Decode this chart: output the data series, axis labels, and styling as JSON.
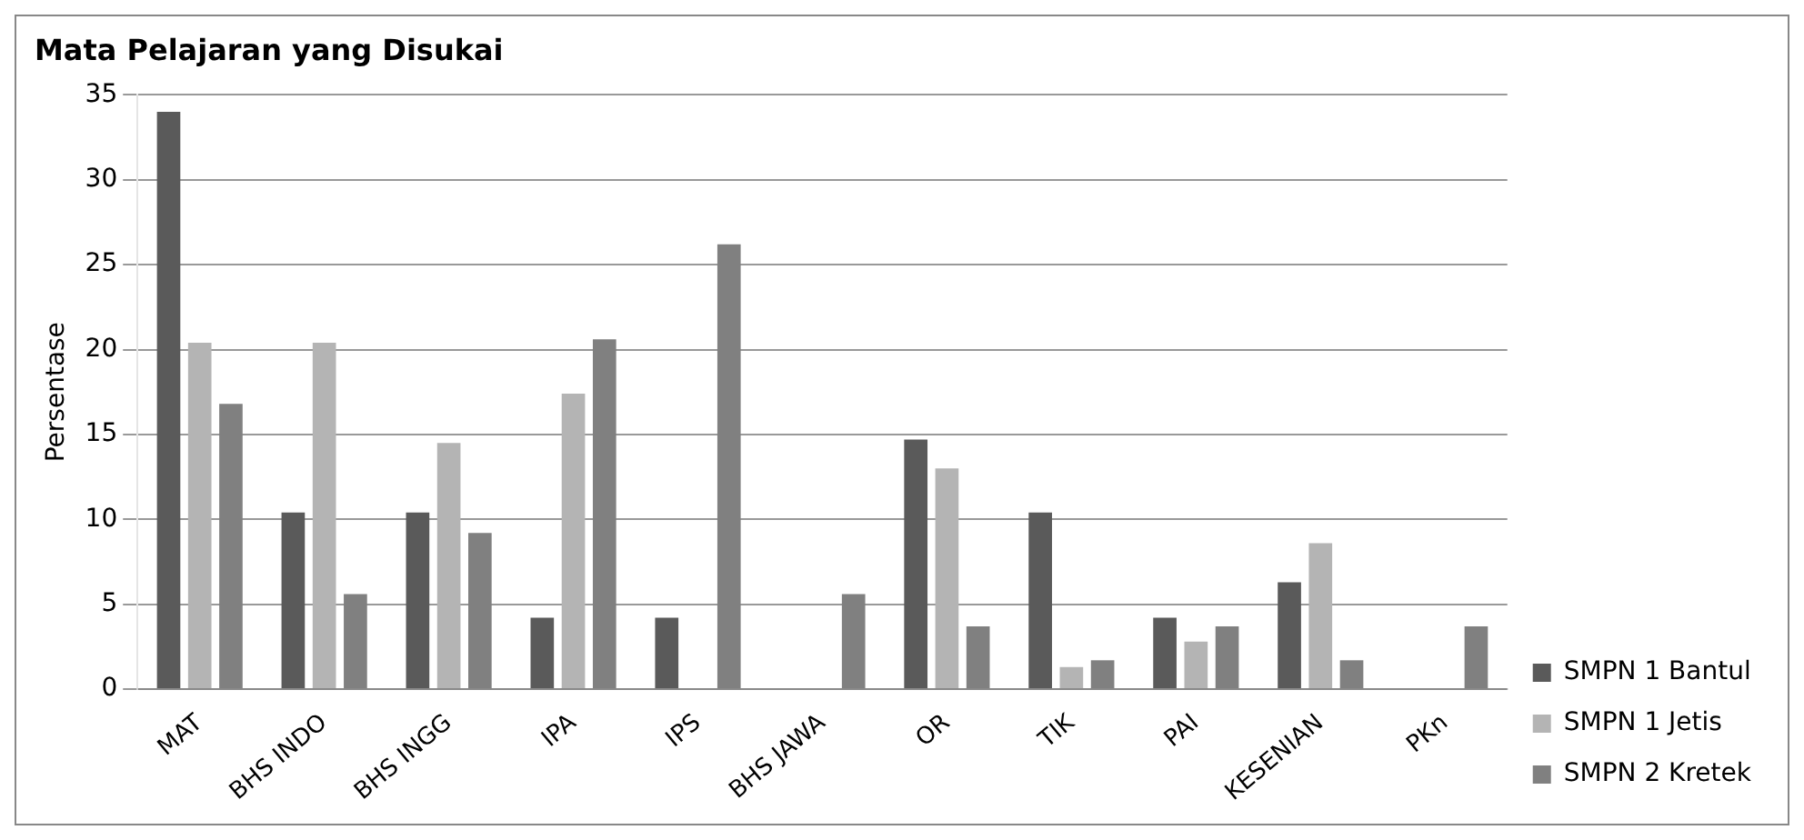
{
  "chart_data": {
    "type": "bar",
    "title": "Mata Pelajaran yang Disukai",
    "ylabel": "Persentase",
    "categories": [
      "MAT",
      "BHS INDO",
      "BHS INGG",
      "IPA",
      "IPS",
      "BHS JAWA",
      "OR",
      "TIK",
      "PAI",
      "KESENIAN",
      "PKn"
    ],
    "series": [
      {
        "name": "SMPN 1 Bantul",
        "color": "#5a5a5a",
        "values": [
          34,
          10.4,
          10.4,
          4.2,
          4.2,
          0,
          14.7,
          10.4,
          4.2,
          6.3,
          0
        ]
      },
      {
        "name": "SMPN 1 Jetis",
        "color": "#b4b4b4",
        "values": [
          20.4,
          20.4,
          14.5,
          17.4,
          0,
          0,
          13,
          1.3,
          2.8,
          8.6,
          0
        ]
      },
      {
        "name": "SMPN 2 Kretek",
        "color": "#808080",
        "values": [
          16.8,
          5.6,
          9.2,
          20.6,
          26.2,
          5.6,
          3.7,
          1.7,
          3.7,
          1.7,
          3.7
        ]
      }
    ],
    "ylim": [
      0,
      35
    ],
    "yticks": [
      0,
      5,
      10,
      15,
      20,
      25,
      30,
      35
    ],
    "grid": "y",
    "legend": "bottom right"
  }
}
